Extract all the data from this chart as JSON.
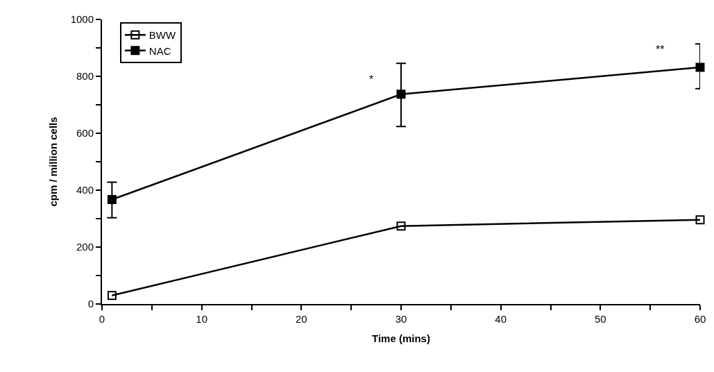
{
  "chart_data": {
    "type": "line",
    "xlabel": "Time (mins)",
    "ylabel": "cpm / million cells",
    "x": [
      1,
      30,
      60
    ],
    "series": [
      {
        "name": "BWW",
        "color": "#000000",
        "values": [
          30,
          274,
          296
        ]
      },
      {
        "name": "NAC",
        "color": "#000000",
        "values": [
          367,
          737,
          832
        ],
        "errors": [
          [
            303,
            428
          ],
          [
            624,
            846
          ],
          [
            757,
            914
          ]
        ]
      }
    ],
    "xlim": [
      0,
      60
    ],
    "xticks": [
      0,
      {
        "value": 5,
        "label": null
      },
      10,
      {
        "value": 15,
        "label": null
      },
      20,
      {
        "value": 25,
        "label": null
      },
      30,
      {
        "value": 35,
        "label": null
      },
      40,
      {
        "value": 45,
        "label": null
      },
      50,
      {
        "value": 55,
        "label": null
      },
      60
    ],
    "ylim": [
      0,
      1000
    ],
    "yticks": [
      0,
      {
        "value": 100,
        "label": null
      },
      200,
      {
        "value": 300,
        "label": null
      },
      400,
      {
        "value": 500,
        "label": null
      },
      600,
      {
        "value": 700,
        "label": null
      },
      800,
      {
        "value": 900,
        "label": null
      },
      1000
    ],
    "annotations": [
      "*",
      "**"
    ],
    "marker": "square",
    "line_style": "solid",
    "legend": "top left"
  }
}
